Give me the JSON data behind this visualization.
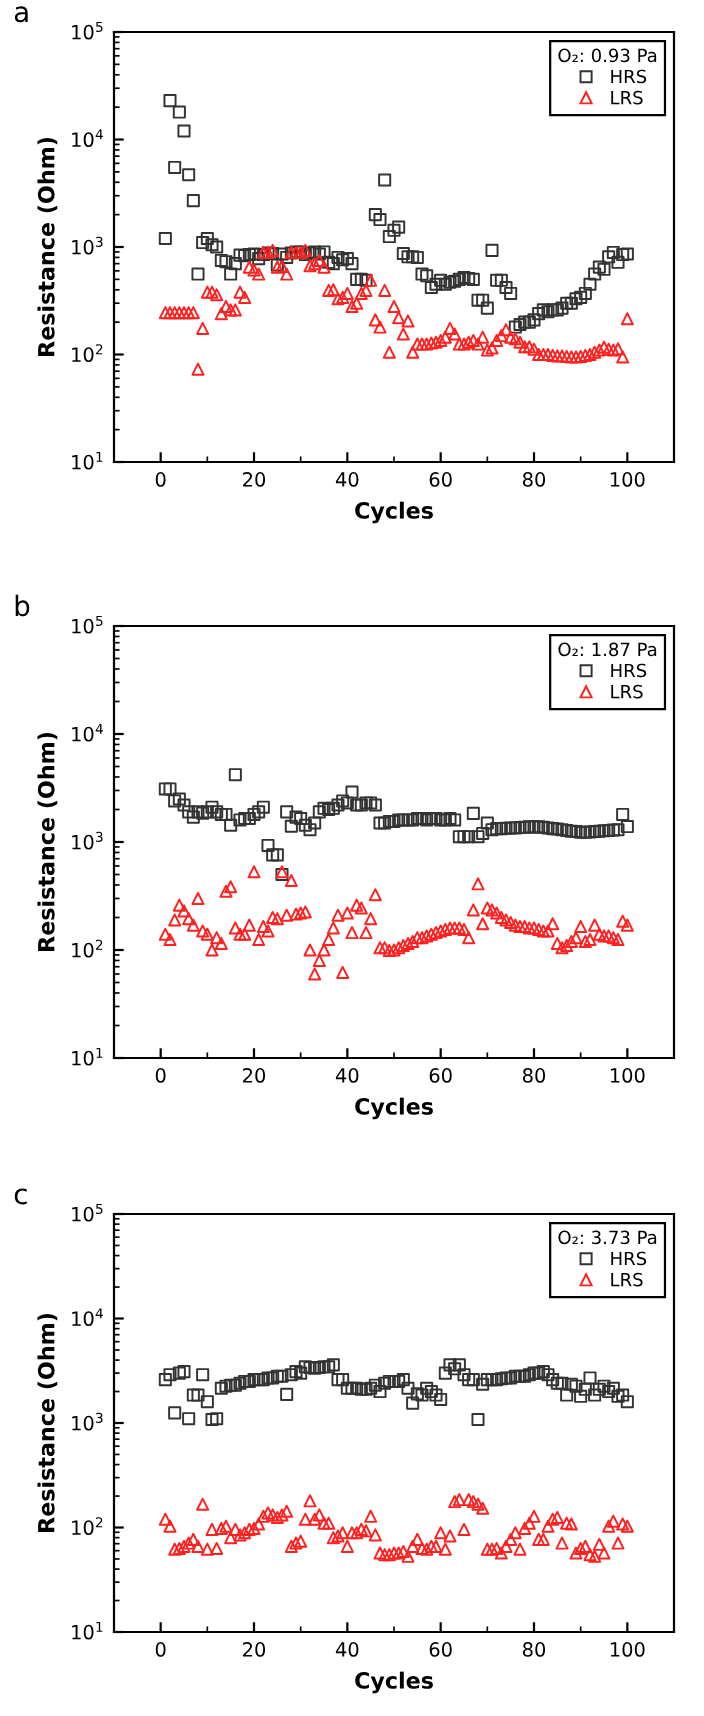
{
  "chart_data": [
    {
      "type": "scatter",
      "title": "a",
      "xlabel": "Cycles",
      "ylabel": "Resistance (Ohm)",
      "legend_title": "O₂: 0.93 Pa",
      "legend": "top right",
      "log": "y",
      "grid": false,
      "xlim": [
        -10,
        110
      ],
      "xticks": [
        0,
        20,
        40,
        60,
        80,
        100
      ],
      "ylim": [
        10,
        100000
      ],
      "yticks": [
        {
          "value": 10,
          "label": "10$^{1}$"
        },
        {
          "value": 100,
          "label": "10$^{2}$"
        },
        {
          "value": 1000,
          "label": "10$^{3}$"
        },
        {
          "value": 10000,
          "label": "10$^{4}$"
        },
        {
          "value": 100000,
          "label": "10$^{5}$"
        }
      ],
      "x": [
        1,
        2,
        3,
        4,
        5,
        6,
        7,
        8,
        9,
        10,
        11,
        12,
        13,
        14,
        15,
        16,
        17,
        18,
        19,
        20,
        21,
        22,
        23,
        24,
        25,
        26,
        27,
        28,
        29,
        30,
        31,
        32,
        33,
        34,
        35,
        36,
        37,
        38,
        39,
        40,
        41,
        42,
        43,
        44,
        45,
        46,
        47,
        48,
        49,
        50,
        51,
        52,
        53,
        54,
        55,
        56,
        57,
        58,
        59,
        60,
        61,
        62,
        63,
        64,
        65,
        66,
        67,
        68,
        69,
        70,
        71,
        72,
        73,
        74,
        75,
        76,
        77,
        78,
        79,
        80,
        81,
        82,
        83,
        84,
        85,
        86,
        87,
        88,
        89,
        90,
        91,
        92,
        93,
        94,
        95,
        96,
        97,
        98,
        99,
        100
      ],
      "series": [
        {
          "name": "HRS",
          "color": "#333333",
          "marker": "square",
          "values": [
            1200,
            23000,
            5500,
            18000,
            12000,
            4700,
            2700,
            560,
            1100,
            1200,
            1050,
            1000,
            750,
            730,
            560,
            700,
            840,
            830,
            850,
            860,
            780,
            850,
            880,
            870,
            680,
            860,
            800,
            880,
            900,
            900,
            850,
            880,
            900,
            860,
            900,
            720,
            700,
            800,
            760,
            780,
            700,
            500,
            500,
            490,
            null,
            2000,
            1800,
            4200,
            1250,
            1430,
            1530,
            870,
            810,
            810,
            800,
            560,
            540,
            420,
            450,
            490,
            450,
            470,
            480,
            500,
            520,
            510,
            500,
            320,
            320,
            270,
            930,
            490,
            490,
            420,
            370,
            180,
            190,
            200,
            200,
            210,
            240,
            260,
            250,
            260,
            260,
            270,
            300,
            300,
            330,
            340,
            370,
            450,
            560,
            650,
            620,
            810,
            890,
            720,
            850,
            860
          ]
        },
        {
          "name": "LRS",
          "color": "#ff2020",
          "marker": "triangle",
          "values": [
            245,
            245,
            245,
            245,
            245,
            245,
            245,
            73,
            175,
            380,
            380,
            360,
            240,
            280,
            260,
            260,
            380,
            340,
            650,
            610,
            560,
            890,
            890,
            930,
            650,
            660,
            560,
            890,
            890,
            890,
            930,
            670,
            700,
            750,
            650,
            395,
            400,
            330,
            340,
            370,
            280,
            300,
            370,
            395,
            490,
            210,
            180,
            395,
            105,
            280,
            220,
            155,
            205,
            105,
            125,
            125,
            125,
            128,
            130,
            135,
            145,
            175,
            155,
            125,
            125,
            130,
            135,
            125,
            145,
            110,
            115,
            135,
            150,
            170,
            145,
            140,
            130,
            118,
            118,
            112,
            100,
            100,
            100,
            98,
            97,
            97,
            96,
            95,
            95,
            96,
            98,
            100,
            105,
            110,
            117,
            112,
            110,
            113,
            95,
            215
          ]
        }
      ]
    },
    {
      "type": "scatter",
      "title": "b",
      "xlabel": "Cycles",
      "ylabel": "Resistance (Ohm)",
      "legend_title": "O₂: 1.87 Pa",
      "legend": "top right",
      "log": "y",
      "grid": false,
      "xlim": [
        -10,
        110
      ],
      "xticks": [
        0,
        20,
        40,
        60,
        80,
        100
      ],
      "ylim": [
        10,
        100000
      ],
      "yticks": [
        {
          "value": 10,
          "label": "10$^{1}$"
        },
        {
          "value": 100,
          "label": "10$^{2}$"
        },
        {
          "value": 1000,
          "label": "10$^{3}$"
        },
        {
          "value": 10000,
          "label": "10$^{4}$"
        },
        {
          "value": 100000,
          "label": "10$^{5}$"
        }
      ],
      "x": [
        1,
        2,
        3,
        4,
        5,
        6,
        7,
        8,
        9,
        10,
        11,
        12,
        13,
        14,
        15,
        16,
        17,
        18,
        19,
        20,
        21,
        22,
        23,
        24,
        25,
        26,
        27,
        28,
        29,
        30,
        31,
        32,
        33,
        34,
        35,
        36,
        37,
        38,
        39,
        40,
        41,
        42,
        43,
        44,
        45,
        46,
        47,
        48,
        49,
        50,
        51,
        52,
        53,
        54,
        55,
        56,
        57,
        58,
        59,
        60,
        61,
        62,
        63,
        64,
        65,
        66,
        67,
        68,
        69,
        70,
        71,
        72,
        73,
        74,
        75,
        76,
        77,
        78,
        79,
        80,
        81,
        82,
        83,
        84,
        85,
        86,
        87,
        88,
        89,
        90,
        91,
        92,
        93,
        94,
        95,
        96,
        97,
        98,
        99,
        100
      ],
      "series": [
        {
          "name": "HRS",
          "color": "#333333",
          "marker": "square",
          "values": [
            3100,
            3100,
            2400,
            2500,
            2200,
            1900,
            1700,
            1900,
            1850,
            1900,
            2100,
            1900,
            1800,
            1800,
            1430,
            4200,
            1600,
            1650,
            1650,
            1800,
            1900,
            2100,
            930,
            760,
            760,
            500,
            1900,
            1400,
            1700,
            1650,
            1430,
            1300,
            1500,
            1900,
            2050,
            2000,
            2050,
            2200,
            2400,
            2300,
            2900,
            2200,
            2200,
            2300,
            2300,
            2200,
            1500,
            1500,
            1550,
            1550,
            1600,
            1600,
            1600,
            1600,
            1650,
            1650,
            1600,
            1650,
            1650,
            1600,
            1600,
            1650,
            1600,
            1120,
            1120,
            1120,
            1840,
            1120,
            1200,
            1500,
            1300,
            1330,
            1330,
            1340,
            1350,
            1350,
            1360,
            1370,
            1380,
            1380,
            1380,
            1370,
            1350,
            1330,
            1320,
            1300,
            1280,
            1260,
            1250,
            1230,
            1230,
            1240,
            1250,
            1260,
            1270,
            1280,
            1290,
            1300,
            1800,
            1390
          ]
        },
        {
          "name": "LRS",
          "color": "#ff2020",
          "marker": "triangle",
          "values": [
            140,
            125,
            190,
            260,
            230,
            195,
            170,
            300,
            150,
            140,
            100,
            130,
            115,
            350,
            385,
            160,
            140,
            140,
            170,
            530,
            125,
            165,
            150,
            200,
            195,
            530,
            210,
            440,
            215,
            220,
            225,
            100,
            60,
            80,
            100,
            125,
            160,
            210,
            62,
            220,
            145,
            260,
            245,
            145,
            195,
            325,
            105,
            105,
            99,
            100,
            105,
            110,
            115,
            120,
            130,
            130,
            135,
            140,
            145,
            150,
            155,
            160,
            160,
            160,
            155,
            130,
            235,
            410,
            175,
            245,
            235,
            220,
            200,
            190,
            180,
            170,
            165,
            165,
            160,
            160,
            155,
            150,
            150,
            175,
            115,
            105,
            110,
            120,
            130,
            165,
            120,
            125,
            170,
            140,
            135,
            135,
            130,
            125,
            185,
            170
          ]
        }
      ]
    },
    {
      "type": "scatter",
      "title": "c",
      "xlabel": "Cycles",
      "ylabel": "Resistance (Ohm)",
      "legend_title": "O₂: 3.73 Pa",
      "legend": "top right",
      "log": "y",
      "grid": false,
      "xlim": [
        -10,
        110
      ],
      "xticks": [
        0,
        20,
        40,
        60,
        80,
        100
      ],
      "ylim": [
        10,
        100000
      ],
      "yticks": [
        {
          "value": 10,
          "label": "10$^{1}$"
        },
        {
          "value": 100,
          "label": "10$^{2}$"
        },
        {
          "value": 1000,
          "label": "10$^{3}$"
        },
        {
          "value": 10000,
          "label": "10$^{4}$"
        },
        {
          "value": 100000,
          "label": "10$^{5}$"
        }
      ],
      "x": [
        1,
        2,
        3,
        4,
        5,
        6,
        7,
        8,
        9,
        10,
        11,
        12,
        13,
        14,
        15,
        16,
        17,
        18,
        19,
        20,
        21,
        22,
        23,
        24,
        25,
        26,
        27,
        28,
        29,
        30,
        31,
        32,
        33,
        34,
        35,
        36,
        37,
        38,
        39,
        40,
        41,
        42,
        43,
        44,
        45,
        46,
        47,
        48,
        49,
        50,
        51,
        52,
        53,
        54,
        55,
        56,
        57,
        58,
        59,
        60,
        61,
        62,
        63,
        64,
        65,
        66,
        67,
        68,
        69,
        70,
        71,
        72,
        73,
        74,
        75,
        76,
        77,
        78,
        79,
        80,
        81,
        82,
        83,
        84,
        85,
        86,
        87,
        88,
        89,
        90,
        91,
        92,
        93,
        94,
        95,
        96,
        97,
        98,
        99,
        100
      ],
      "series": [
        {
          "name": "HRS",
          "color": "#333333",
          "marker": "square",
          "values": [
            2600,
            2900,
            1250,
            3000,
            3100,
            1100,
            1850,
            1850,
            2900,
            1600,
            1080,
            1100,
            2150,
            2250,
            2300,
            2300,
            2400,
            2500,
            2500,
            2600,
            2600,
            2600,
            2700,
            2700,
            2800,
            2800,
            1880,
            2900,
            3100,
            3000,
            3450,
            3400,
            3350,
            3400,
            3450,
            3450,
            3600,
            2600,
            2600,
            2150,
            2150,
            2150,
            2100,
            2100,
            2150,
            2300,
            2000,
            2400,
            2500,
            2500,
            2500,
            2600,
            2150,
            1550,
            1900,
            1850,
            2150,
            2000,
            1850,
            1680,
            3000,
            3600,
            3300,
            3600,
            2900,
            2600,
            2600,
            1080,
            2350,
            2600,
            2600,
            2600,
            2650,
            2700,
            2700,
            2800,
            2800,
            2800,
            2900,
            3000,
            3000,
            3100,
            2900,
            2600,
            2400,
            2400,
            1850,
            2350,
            2250,
            1800,
            2100,
            2700,
            1850,
            2100,
            2250,
            2000,
            2150,
            1800,
            1850,
            1600
          ]
        },
        {
          "name": "LRS",
          "color": "#ff2020",
          "marker": "triangle",
          "values": [
            120,
            103,
            62,
            63,
            66,
            71,
            77,
            66,
            167,
            62,
            96,
            63,
            98,
            103,
            80,
            96,
            85,
            89,
            96,
            98,
            108,
            128,
            138,
            132,
            125,
            132,
            143,
            66,
            71,
            74,
            120,
            180,
            120,
            132,
            110,
            110,
            80,
            83,
            89,
            66,
            89,
            89,
            96,
            93,
            128,
            85,
            57,
            55,
            55,
            57,
            57,
            59,
            53,
            66,
            77,
            63,
            62,
            66,
            66,
            89,
            62,
            83,
            177,
            185,
            96,
            185,
            177,
            167,
            153,
            62,
            62,
            63,
            57,
            66,
            77,
            89,
            62,
            98,
            110,
            128,
            77,
            77,
            103,
            120,
            125,
            71,
            110,
            108,
            57,
            63,
            66,
            55,
            53,
            69,
            57,
            103,
            115,
            71,
            108,
            103
          ]
        }
      ]
    }
  ]
}
